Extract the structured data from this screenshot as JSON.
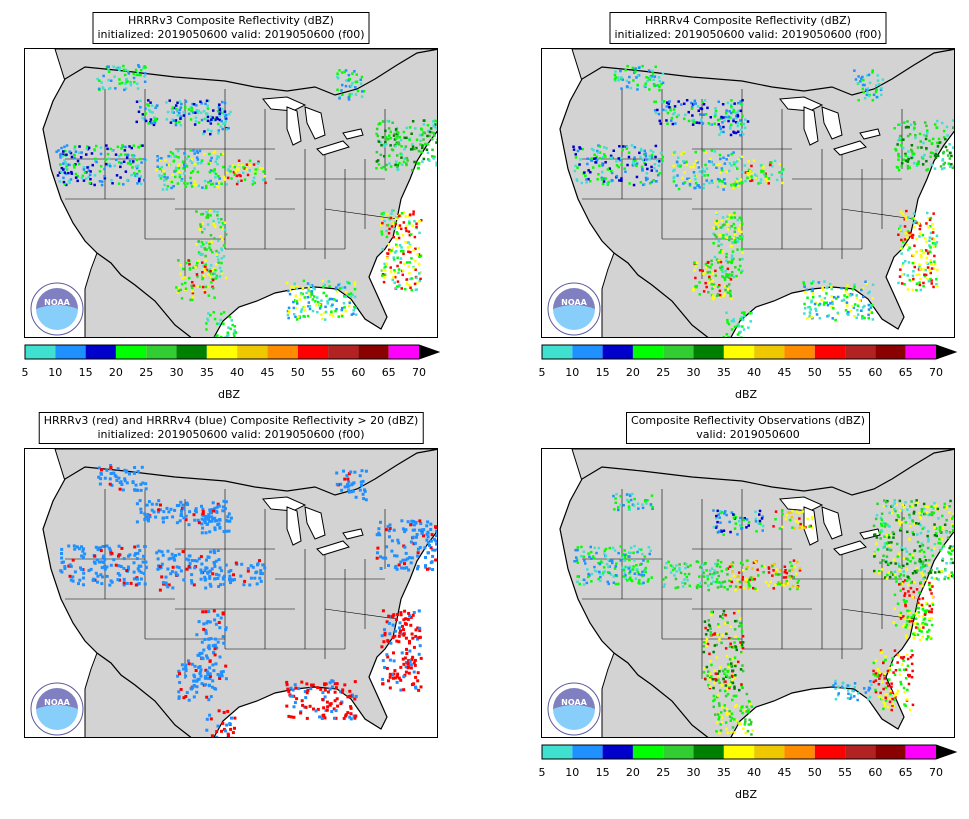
{
  "panels": [
    {
      "id": "p1",
      "title_line1": "HRRRv3 Composite Reflectivity (dBZ)",
      "title_line2": "initialized: 2019050600 valid: 2019050600 (f00)",
      "field": "model",
      "has_colorbar": true
    },
    {
      "id": "p2",
      "title_line1": "HRRRv4 Composite Reflectivity (dBZ)",
      "title_line2": "initialized: 2019050600 valid: 2019050600 (f00)",
      "field": "model",
      "has_colorbar": true
    },
    {
      "id": "p3",
      "title_line1": "HRRRv3 (red) and HRRRv4 (blue) Composite Reflectivity > 20 (dBZ)",
      "title_line2": "initialized: 2019050600 valid: 2019050600 (f00)",
      "field": "exceedance",
      "has_colorbar": false
    },
    {
      "id": "p4",
      "title_line1": "Composite Reflectivity Observations (dBZ)",
      "title_line2": "valid: 2019050600",
      "field": "obs",
      "has_colorbar": true
    }
  ],
  "colorbar": {
    "label": "dBZ",
    "ticks": [
      "5",
      "10",
      "15",
      "20",
      "25",
      "30",
      "35",
      "40",
      "45",
      "50",
      "55",
      "60",
      "65",
      "70"
    ],
    "colors": [
      "#40e0d0",
      "#1e90ff",
      "#0000cd",
      "#00ff00",
      "#32cd32",
      "#008000",
      "#ffff00",
      "#eec900",
      "#ff8c00",
      "#ff0000",
      "#b22222",
      "#8b0000",
      "#ff00ff"
    ]
  },
  "colors": {
    "land": "#d3d3d3",
    "water": "#ffffff",
    "hrrrv3_exceed": "#ff0000",
    "hrrrv4_exceed": "#1e90ff"
  },
  "logo": {
    "text": "NOAA",
    "icon": "noaa-logo-icon"
  }
}
